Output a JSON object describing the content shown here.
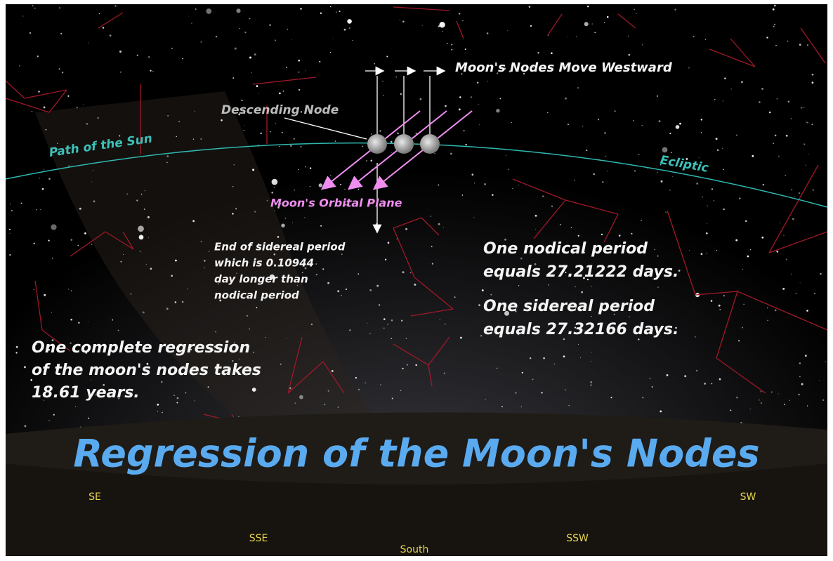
{
  "title": "Regression of the Moon's Nodes",
  "labels": {
    "nodes_move": "Moon's Nodes Move Westward",
    "descending_node": "Descending Node",
    "path_of_sun": "Path of the Sun",
    "ecliptic": "Ecliptic",
    "orbital_plane": "Moon's Orbital Plane"
  },
  "notes": {
    "sidereal_end": [
      "End of sidereal period",
      "which is 0.10944",
      "day longer than",
      "nodical period"
    ],
    "nodical": [
      "One nodical period",
      "equals 27.21222 days."
    ],
    "sidereal": [
      "One sidereal period",
      "equals 27.32166 days."
    ],
    "regression": [
      "One complete regression",
      "of the moon's nodes takes",
      "18.61 years."
    ]
  },
  "compass": [
    "SE",
    "SSE",
    "South",
    "SSW",
    "SW"
  ]
}
